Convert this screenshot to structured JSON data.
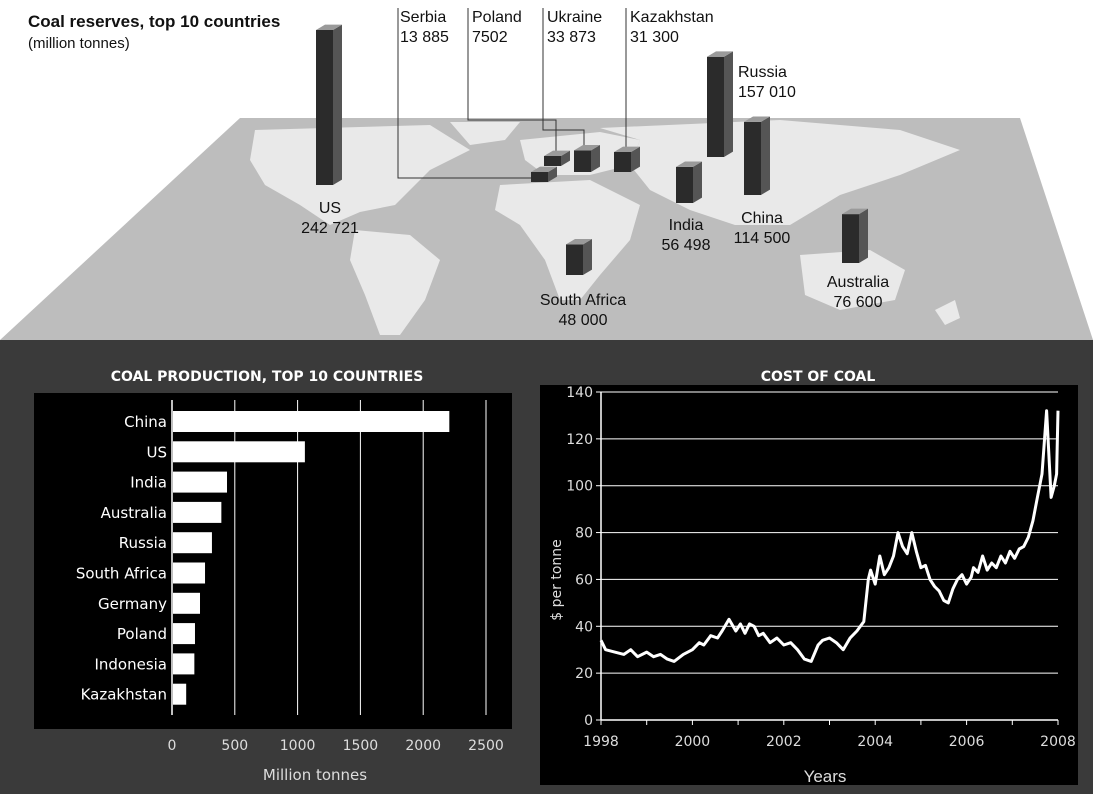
{
  "reserves": {
    "title": "Coal reserves, top 10 countries",
    "subtitle": "(million tonnes)"
  },
  "chart_data": [
    {
      "type": "bar",
      "title": "Coal reserves, top 10 countries",
      "subtitle": "(million tonnes)",
      "categories": [
        "US",
        "Serbia",
        "Poland",
        "Ukraine",
        "Kazakhstan",
        "Russia",
        "India",
        "China",
        "South Africa",
        "Australia"
      ],
      "value_labels": [
        "242721",
        "13885",
        "7502",
        "33873",
        "31300",
        "157010",
        "56498",
        "114500",
        "48000",
        "76600"
      ],
      "values": [
        242721,
        13885,
        7502,
        33873,
        31300,
        157010,
        56498,
        114500,
        48000,
        76600
      ],
      "label_lines": [
        [
          "US",
          "242 721"
        ],
        [
          "Serbia",
          "13 885"
        ],
        [
          "Poland",
          "7502"
        ],
        [
          "Ukraine",
          "33 873"
        ],
        [
          "Kazakhstan",
          "31 300"
        ],
        [
          "Russia",
          "157 010"
        ],
        [
          "India",
          "56 498"
        ],
        [
          "China",
          "114 500"
        ],
        [
          "South Africa",
          "48 000"
        ],
        [
          "Australia",
          "76 600"
        ]
      ],
      "colors": {
        "bar_front": "#2b2b2b",
        "bar_top": "#9a9a9a",
        "bar_side": "#555555",
        "map_land": "#e9e9e9",
        "map_sea": "#bdbdbd"
      }
    },
    {
      "type": "bar",
      "orientation": "horizontal",
      "title": "COAL PRODUCTION, TOP 10 COUNTRIES",
      "xlabel": "Million tonnes",
      "ylabel": "",
      "categories": [
        "China",
        "US",
        "India",
        "Australia",
        "Russia",
        "South Africa",
        "Germany",
        "Poland",
        "Indonesia",
        "Kazakhstan"
      ],
      "values": [
        2200,
        1050,
        430,
        385,
        310,
        255,
        215,
        175,
        170,
        105
      ],
      "xlim": [
        0,
        2500
      ],
      "xticks": [
        0,
        500,
        1000,
        1500,
        2000,
        2500
      ],
      "xtick_labels": [
        "0",
        "500",
        "1000",
        "1500",
        "2000",
        "2500"
      ],
      "grid": true,
      "colors": {
        "background": "#000000",
        "bar": "#ffffff",
        "grid": "#ffffff",
        "text": "#ffffff"
      }
    },
    {
      "type": "line",
      "title": "COST OF COAL",
      "xlabel": "Years",
      "ylabel": "$ per tonne",
      "xlim": [
        1998,
        2008
      ],
      "ylim": [
        0,
        140
      ],
      "xticks": [
        1998,
        2000,
        2002,
        2004,
        2006,
        2008
      ],
      "xtick_labels": [
        "1998",
        "2000",
        "2002",
        "2004",
        "2006",
        "2008"
      ],
      "yticks": [
        0,
        20,
        40,
        60,
        80,
        100,
        120,
        140
      ],
      "ytick_labels": [
        "0",
        "20",
        "40",
        "60",
        "80",
        "100",
        "120",
        "140"
      ],
      "grid": true,
      "x": [
        1998.0,
        1998.1,
        1998.3,
        1998.5,
        1998.65,
        1998.8,
        1999.0,
        1999.15,
        1999.3,
        1999.45,
        1999.6,
        1999.8,
        2000.0,
        2000.15,
        2000.25,
        2000.4,
        2000.55,
        2000.65,
        2000.8,
        2000.95,
        2001.05,
        2001.15,
        2001.25,
        2001.35,
        2001.45,
        2001.55,
        2001.7,
        2001.85,
        2002.0,
        2002.15,
        2002.3,
        2002.45,
        2002.6,
        2002.75,
        2002.85,
        2003.0,
        2003.15,
        2003.3,
        2003.45,
        2003.6,
        2003.75,
        2003.85,
        2003.9,
        2004.0,
        2004.1,
        2004.2,
        2004.3,
        2004.4,
        2004.5,
        2004.6,
        2004.7,
        2004.8,
        2004.9,
        2005.0,
        2005.1,
        2005.2,
        2005.3,
        2005.4,
        2005.5,
        2005.6,
        2005.7,
        2005.8,
        2005.9,
        2006.0,
        2006.1,
        2006.15,
        2006.25,
        2006.35,
        2006.45,
        2006.55,
        2006.65,
        2006.75,
        2006.85,
        2006.95,
        2007.05,
        2007.15,
        2007.25,
        2007.35,
        2007.45,
        2007.55,
        2007.65,
        2007.75,
        2007.85,
        2007.92,
        2007.97,
        2008.0
      ],
      "series": [
        {
          "values": [
            34,
            30,
            29,
            28,
            30,
            27,
            29,
            27,
            28,
            26,
            25,
            28,
            30,
            33,
            32,
            36,
            35,
            38,
            43,
            38,
            41,
            37,
            41,
            40,
            36,
            37,
            33,
            35,
            32,
            33,
            30,
            26,
            25,
            32,
            34,
            35,
            33,
            30,
            35,
            38,
            42,
            60,
            64,
            58,
            70,
            62,
            65,
            70,
            80,
            74,
            71,
            80,
            72,
            65,
            66,
            60,
            57,
            55,
            51,
            50,
            56,
            60,
            62,
            58,
            61,
            65,
            63,
            70,
            64,
            67,
            65,
            70,
            67,
            72,
            69,
            73,
            74,
            78,
            85,
            95,
            105,
            132,
            95,
            100,
            105,
            132
          ],
          "color": "#ffffff"
        }
      ],
      "colors": {
        "background": "#000000",
        "line": "#ffffff",
        "grid": "#ffffff",
        "text": "#ffffff"
      }
    }
  ]
}
